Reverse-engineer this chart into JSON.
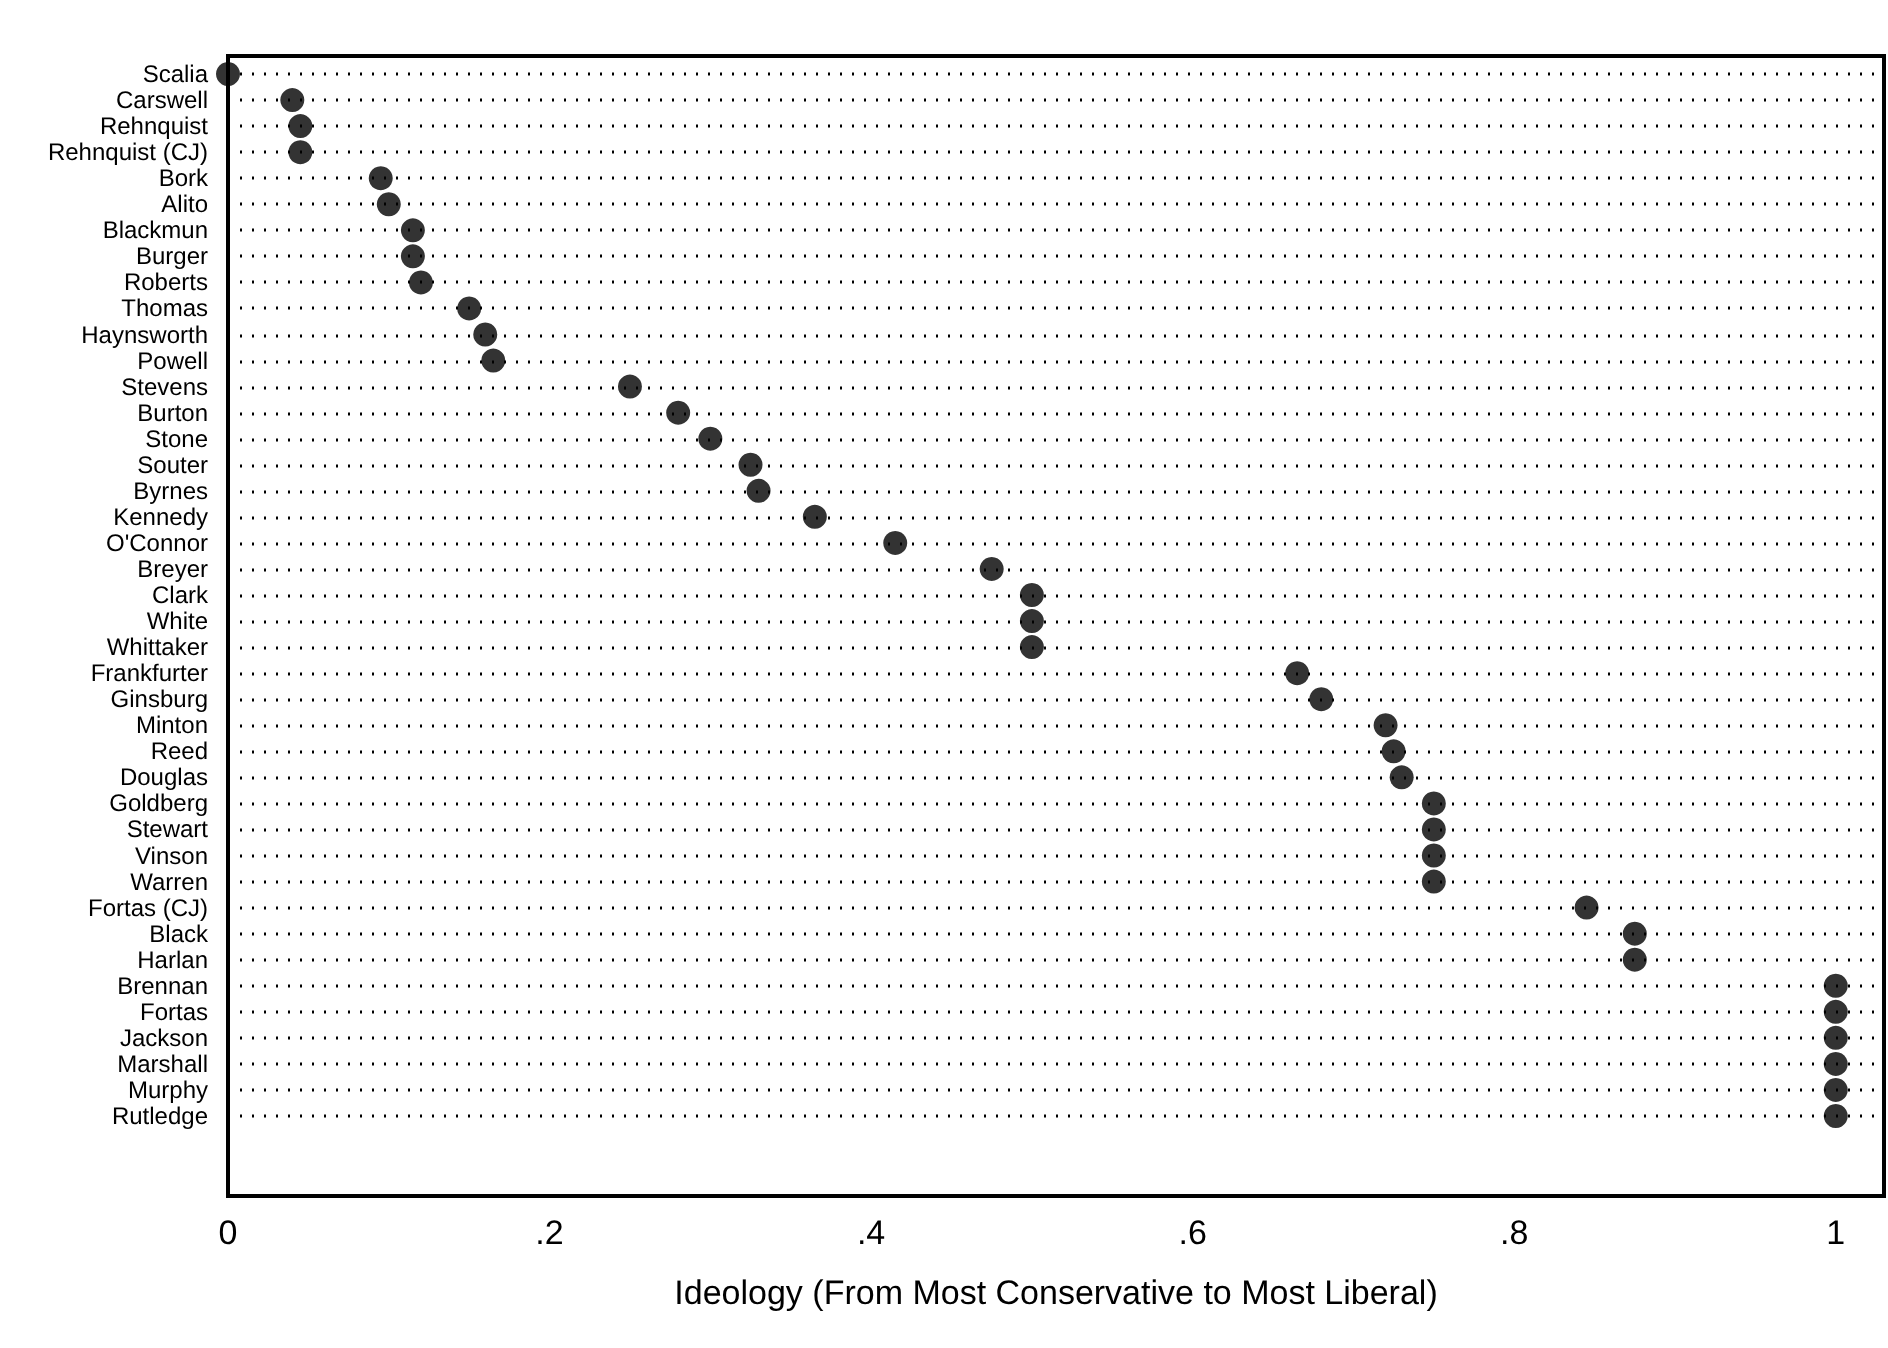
{
  "chart_data": {
    "type": "scatter",
    "orientation": "horizontal",
    "xlabel": "Ideology (From Most Conservative to Most Liberal)",
    "categories": [
      "Scalia",
      "Carswell",
      "Rehnquist",
      "Rehnquist (CJ)",
      "Bork",
      "Alito",
      "Blackmun",
      "Burger",
      "Roberts",
      "Thomas",
      "Haynsworth",
      "Powell",
      "Stevens",
      "Burton",
      "Stone",
      "Souter",
      "Byrnes",
      "Kennedy",
      "O'Connor",
      "Breyer",
      "Clark",
      "White",
      "Whittaker",
      "Frankfurter",
      "Ginsburg",
      "Minton",
      "Reed",
      "Douglas",
      "Goldberg",
      "Stewart",
      "Vinson",
      "Warren",
      "Fortas (CJ)",
      "Black",
      "Harlan",
      "Brennan",
      "Fortas",
      "Jackson",
      "Marshall",
      "Murphy",
      "Rutledge"
    ],
    "values": [
      0,
      0.04,
      0.045,
      0.045,
      0.095,
      0.1,
      0.115,
      0.115,
      0.12,
      0.15,
      0.16,
      0.165,
      0.25,
      0.28,
      0.3,
      0.325,
      0.33,
      0.365,
      0.415,
      0.475,
      0.5,
      0.5,
      0.5,
      0.665,
      0.68,
      0.72,
      0.725,
      0.73,
      0.75,
      0.75,
      0.75,
      0.75,
      0.845,
      0.875,
      0.875,
      1,
      1,
      1,
      1,
      1,
      1
    ],
    "color": "#000000",
    "marker": "circle",
    "grid": "y",
    "xlim": [
      0,
      1.03
    ],
    "xticks": [
      0,
      {
        "value": 0.2,
        "label": ".2"
      },
      {
        "value": 0.4,
        "label": ".4"
      },
      {
        "value": 0.6,
        "label": ".6"
      },
      {
        "value": 0.8,
        "label": ".8"
      },
      1
    ]
  }
}
